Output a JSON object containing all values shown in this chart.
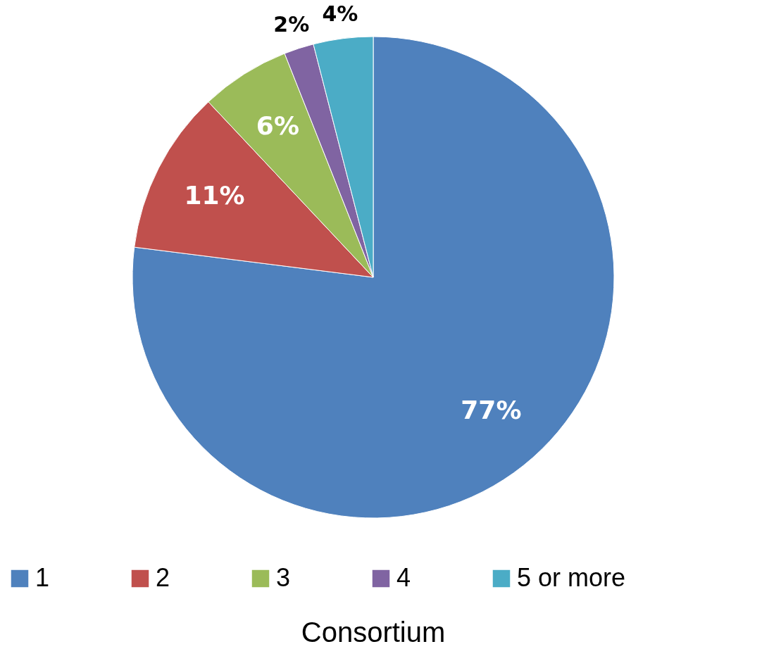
{
  "chart_data": {
    "type": "pie",
    "title": "Consortium",
    "categories": [
      "1",
      "2",
      "3",
      "4",
      "5 or more"
    ],
    "values": [
      77,
      11,
      6,
      2,
      4
    ],
    "colors": [
      "#4f81bd",
      "#c0504d",
      "#9bbb59",
      "#8064a2",
      "#4bacc6"
    ],
    "value_labels": [
      "77%",
      "11%",
      "6%",
      "2%",
      "4%"
    ],
    "legend": "bottom"
  }
}
